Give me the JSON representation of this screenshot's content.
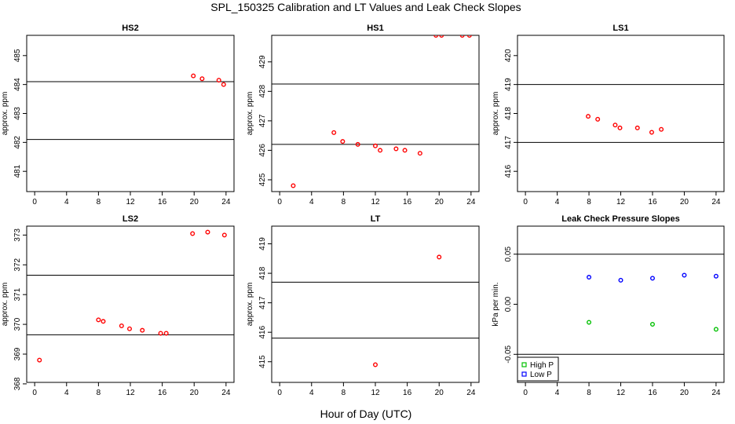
{
  "figure": {
    "title": "SPL_150325  Calibration and LT Values and Leak Check Slopes",
    "xlabel": "Hour of Day (UTC)"
  },
  "chart_data": [
    {
      "id": "hs2",
      "type": "scatter",
      "title": "HS2",
      "ylabel": "approx. ppm",
      "xlim": [
        -1,
        25
      ],
      "ylim": [
        480.3,
        485.7
      ],
      "xticks": [
        0,
        4,
        8,
        12,
        16,
        20,
        24
      ],
      "xtick_labels": [
        "0",
        "4",
        "8",
        "12",
        "16",
        "20",
        "24"
      ],
      "yticks": [
        481,
        482,
        483,
        484,
        485
      ],
      "ytick_labels": [
        "481",
        "482",
        "483",
        "484",
        "485"
      ],
      "hlines": [
        484.1,
        482.1
      ],
      "series": [
        {
          "color": "#ff0000",
          "x": [
            19.9,
            21.0,
            23.1,
            23.7
          ],
          "y": [
            484.3,
            484.2,
            484.15,
            484.0
          ]
        }
      ]
    },
    {
      "id": "hs1",
      "type": "scatter",
      "title": "HS1",
      "ylabel": "approx. ppm",
      "xlim": [
        -1,
        25
      ],
      "ylim": [
        424.6,
        429.9
      ],
      "xticks": [
        0,
        4,
        8,
        12,
        16,
        20,
        24
      ],
      "xtick_labels": [
        "0",
        "4",
        "8",
        "12",
        "16",
        "20",
        "24"
      ],
      "yticks": [
        425,
        426,
        427,
        428,
        429
      ],
      "ytick_labels": [
        "425",
        "426",
        "427",
        "428",
        "429"
      ],
      "hlines": [
        428.25,
        426.2
      ],
      "series": [
        {
          "color": "#ff0000",
          "x": [
            1.7,
            6.8,
            7.9,
            9.8,
            12.0,
            12.6,
            14.6,
            15.7,
            17.6,
            19.6,
            20.3,
            22.9,
            23.8
          ],
          "y": [
            424.8,
            426.6,
            426.3,
            426.2,
            426.15,
            426.0,
            426.05,
            426.0,
            425.9,
            429.9,
            429.9,
            429.9,
            429.9
          ]
        }
      ]
    },
    {
      "id": "ls1",
      "type": "scatter",
      "title": "LS1",
      "ylabel": "approx. ppm",
      "xlim": [
        -1,
        25
      ],
      "ylim": [
        415.3,
        420.7
      ],
      "xticks": [
        0,
        4,
        8,
        12,
        16,
        20,
        24
      ],
      "xtick_labels": [
        "0",
        "4",
        "8",
        "12",
        "16",
        "20",
        "24"
      ],
      "yticks": [
        416,
        417,
        418,
        419,
        420
      ],
      "ytick_labels": [
        "416",
        "417",
        "418",
        "419",
        "420"
      ],
      "hlines": [
        419.0,
        417.0
      ],
      "series": [
        {
          "color": "#ff0000",
          "x": [
            7.9,
            9.1,
            11.3,
            11.9,
            14.1,
            15.9,
            17.1
          ],
          "y": [
            417.9,
            417.8,
            417.6,
            417.5,
            417.5,
            417.35,
            417.45
          ]
        }
      ]
    },
    {
      "id": "ls2",
      "type": "scatter",
      "title": "LS2",
      "ylabel": "approx. ppm",
      "xlim": [
        -1,
        25
      ],
      "ylim": [
        368.05,
        373.3
      ],
      "xticks": [
        0,
        4,
        8,
        12,
        16,
        20,
        24
      ],
      "xtick_labels": [
        "0",
        "4",
        "8",
        "12",
        "16",
        "20",
        "24"
      ],
      "yticks": [
        368,
        369,
        370,
        371,
        372,
        373
      ],
      "ytick_labels": [
        "368",
        "369",
        "370",
        "371",
        "372",
        "373"
      ],
      "hlines": [
        371.65,
        369.65
      ],
      "series": [
        {
          "color": "#ff0000",
          "x": [
            0.6,
            8.0,
            8.6,
            10.9,
            11.9,
            13.5,
            15.8,
            16.5,
            19.8,
            21.7,
            23.8
          ],
          "y": [
            368.8,
            370.15,
            370.1,
            369.95,
            369.85,
            369.8,
            369.7,
            369.7,
            373.05,
            373.1,
            373.0
          ]
        }
      ]
    },
    {
      "id": "lt",
      "type": "scatter",
      "title": "LT",
      "ylabel": "approx. ppm",
      "xlim": [
        -1,
        25
      ],
      "ylim": [
        414.3,
        419.6
      ],
      "xticks": [
        0,
        4,
        8,
        12,
        16,
        20,
        24
      ],
      "xtick_labels": [
        "0",
        "4",
        "8",
        "12",
        "16",
        "20",
        "24"
      ],
      "yticks": [
        415,
        416,
        417,
        418,
        419
      ],
      "ytick_labels": [
        "415",
        "416",
        "417",
        "418",
        "419"
      ],
      "hlines": [
        417.7,
        415.8
      ],
      "series": [
        {
          "color": "#ff0000",
          "x": [
            12.0,
            20.0
          ],
          "y": [
            414.9,
            418.55
          ]
        }
      ]
    },
    {
      "id": "leak",
      "type": "scatter",
      "title": "Leak Check Pressure Slopes",
      "ylabel": "kPa per min.",
      "xlim": [
        -1,
        25
      ],
      "ylim": [
        -0.078,
        0.078
      ],
      "xticks": [
        0,
        4,
        8,
        12,
        16,
        20,
        24
      ],
      "xtick_labels": [
        "0",
        "4",
        "8",
        "12",
        "16",
        "20",
        "24"
      ],
      "yticks": [
        -0.05,
        0.0,
        0.05
      ],
      "ytick_labels": [
        "-0.05",
        "0.00",
        "0.05"
      ],
      "hlines": [
        0.05,
        -0.05
      ],
      "legend": "bottom-left",
      "series": [
        {
          "name": "High P",
          "color": "#00c000",
          "x": [
            8,
            16,
            24
          ],
          "y": [
            -0.018,
            -0.02,
            -0.025
          ]
        },
        {
          "name": "Low P",
          "color": "#0000ff",
          "x": [
            8,
            12,
            16,
            20,
            24
          ],
          "y": [
            0.027,
            0.024,
            0.026,
            0.029,
            0.028
          ]
        }
      ]
    }
  ]
}
